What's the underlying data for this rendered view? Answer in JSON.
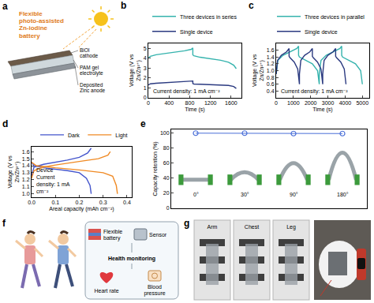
{
  "chart_data": [
    {
      "panel": "b",
      "type": "line",
      "x_label": "Time (s)",
      "y_label": "Voltage (V vs Zn/Zn²⁺)",
      "xlim": [
        0,
        1800
      ],
      "xticks": [
        0,
        400,
        800,
        1200,
        1600
      ],
      "ylim": [
        0,
        5.5
      ],
      "yticks": [
        0,
        1,
        2,
        3,
        4,
        5
      ],
      "grid": false,
      "legend": "top",
      "annotations": [
        "Current density: 1 mA cm⁻²"
      ],
      "series": [
        {
          "name": "Three devices in series",
          "color": "#35b3ad",
          "x": [
            0,
            40,
            150,
            300,
            500,
            700,
            830,
            860,
            860,
            880,
            1000,
            1200,
            1400,
            1550,
            1650,
            1700
          ],
          "values": [
            4.0,
            4.2,
            4.35,
            4.45,
            4.6,
            4.75,
            4.9,
            5.05,
            4.35,
            4.25,
            4.1,
            3.95,
            3.8,
            3.6,
            3.3,
            2.95
          ]
        },
        {
          "name": "Single device",
          "color": "#2b3a80",
          "x": [
            0,
            40,
            150,
            300,
            500,
            700,
            830,
            860,
            860,
            880,
            1000,
            1200,
            1400,
            1550,
            1650,
            1700
          ],
          "values": [
            1.3,
            1.42,
            1.48,
            1.52,
            1.56,
            1.6,
            1.64,
            1.7,
            1.45,
            1.4,
            1.37,
            1.34,
            1.3,
            1.25,
            1.15,
            0.95
          ]
        }
      ]
    },
    {
      "panel": "c",
      "type": "line",
      "x_label": "Time (s)",
      "y_label": "Voltage (V vs Zn/Zn²⁺)",
      "xlim": [
        0,
        5400
      ],
      "xticks": [
        0,
        1000,
        2000,
        3000,
        4000,
        5000
      ],
      "ylim": [
        0.2,
        1.8
      ],
      "yticks": [
        0.4,
        0.6,
        0.8,
        {
          "value": 1,
          "label": "1.0"
        },
        1.2,
        1.4,
        1.6
      ],
      "grid": false,
      "legend": "top",
      "annotations": [
        "Current density: 1 mA cm⁻²"
      ],
      "series": [
        {
          "name": "Three devices in parallel",
          "color": "#35b3ad",
          "x": [
            0,
            100,
            400,
            800,
            1200,
            1300,
            1300,
            1350,
            1700,
            2100,
            2400,
            2500,
            2500,
            2600,
            2900,
            3300,
            3700,
            3800,
            3800,
            3850,
            4200,
            4600,
            4900,
            5000
          ],
          "values": [
            0.9,
            1.3,
            1.45,
            1.55,
            1.65,
            1.72,
            1.45,
            1.4,
            1.3,
            1.2,
            1.0,
            0.6,
            0.9,
            1.3,
            1.45,
            1.55,
            1.65,
            1.72,
            1.45,
            1.4,
            1.3,
            1.2,
            1.0,
            0.6
          ]
        },
        {
          "name": "Single device",
          "color": "#2b3a80",
          "x": [
            0,
            80,
            300,
            600,
            750,
            750,
            800,
            1050,
            1250,
            1350,
            1350,
            1430,
            1650,
            1950,
            2100,
            2100,
            2150,
            2400,
            2600,
            2700,
            2700,
            2780,
            3000,
            3300,
            3450,
            3450,
            3500,
            3750,
            3950,
            4050
          ],
          "values": [
            0.9,
            1.3,
            1.45,
            1.55,
            1.65,
            1.42,
            1.38,
            1.25,
            1.05,
            0.6,
            0.9,
            1.3,
            1.45,
            1.55,
            1.65,
            1.42,
            1.38,
            1.25,
            1.05,
            0.6,
            0.9,
            1.3,
            1.45,
            1.55,
            1.65,
            1.42,
            1.38,
            1.25,
            1.05,
            0.6
          ]
        }
      ]
    },
    {
      "panel": "d",
      "type": "line",
      "x_label": "Areal capacity (mAh cm⁻²)",
      "y_label": "Voltage (V vs Zn/Zn²⁺)",
      "xlim": [
        0,
        0.42
      ],
      "xticks": [
        {
          "value": 0,
          "label": "0.0"
        },
        0.1,
        0.2,
        0.3,
        0.4
      ],
      "ylim": [
        0.95,
        1.67
      ],
      "yticks": [
        {
          "value": 1,
          "label": "1.0"
        },
        1.1,
        1.2,
        1.3,
        1.4,
        1.5,
        1.6
      ],
      "grid": false,
      "legend": "top",
      "annotations": [
        "Device",
        "Current density: 1 mA cm⁻²"
      ],
      "series": [
        {
          "name": "Dark",
          "color": "#4455cc",
          "x": [
            0,
            0.01,
            0.05,
            0.1,
            0.15,
            0.2,
            0.235,
            0.25,
            0.25,
            0,
            0.01,
            0.05,
            0.1,
            0.15,
            0.2,
            0.23,
            0.245,
            0.25
          ],
          "values": [
            1.25,
            1.38,
            1.42,
            1.45,
            1.48,
            1.52,
            1.58,
            1.65,
            null,
            1.45,
            1.4,
            1.37,
            1.35,
            1.33,
            1.3,
            1.22,
            1.12,
            1.0
          ]
        },
        {
          "name": "Light",
          "color": "#f08a24",
          "x": [
            0,
            0.01,
            0.05,
            0.1,
            0.2,
            0.28,
            0.32,
            0.33,
            0.33,
            0,
            0.02,
            0.1,
            0.2,
            0.3,
            0.34,
            0.355,
            0.36
          ],
          "values": [
            1.22,
            1.33,
            1.38,
            1.41,
            1.46,
            1.5,
            1.55,
            1.6,
            null,
            1.45,
            1.4,
            1.37,
            1.34,
            1.3,
            1.25,
            1.12,
            1.0
          ]
        }
      ]
    },
    {
      "panel": "e",
      "type": "line",
      "y_label": "Capacity retention (%)",
      "categories": [
        "0°",
        "30°",
        "90°",
        "180°"
      ],
      "values": [
        100,
        100,
        99.5,
        99.5
      ],
      "color": "#4a6fd8",
      "marker": "circle-open",
      "ylim": [
        0,
        105
      ],
      "yticks": [
        0,
        20,
        40,
        60,
        80,
        100
      ],
      "grid": false,
      "tick_labels": "y"
    }
  ],
  "panel_a": {
    "panel": "a",
    "title": "Flexible photo-assisted Zn-iodine battery",
    "layers": [
      "BiOI cathode",
      "PAM gel electrolyte",
      "Deposited Zinc anode"
    ]
  },
  "panel_f": {
    "panel": "f",
    "items": [
      "Flexible battery",
      "Sensor",
      "Health monitoring",
      "Heart rate",
      "Blood pressure"
    ]
  },
  "panel_g": {
    "panel": "g",
    "photos": [
      "Arm",
      "Chest",
      "Leg"
    ]
  }
}
